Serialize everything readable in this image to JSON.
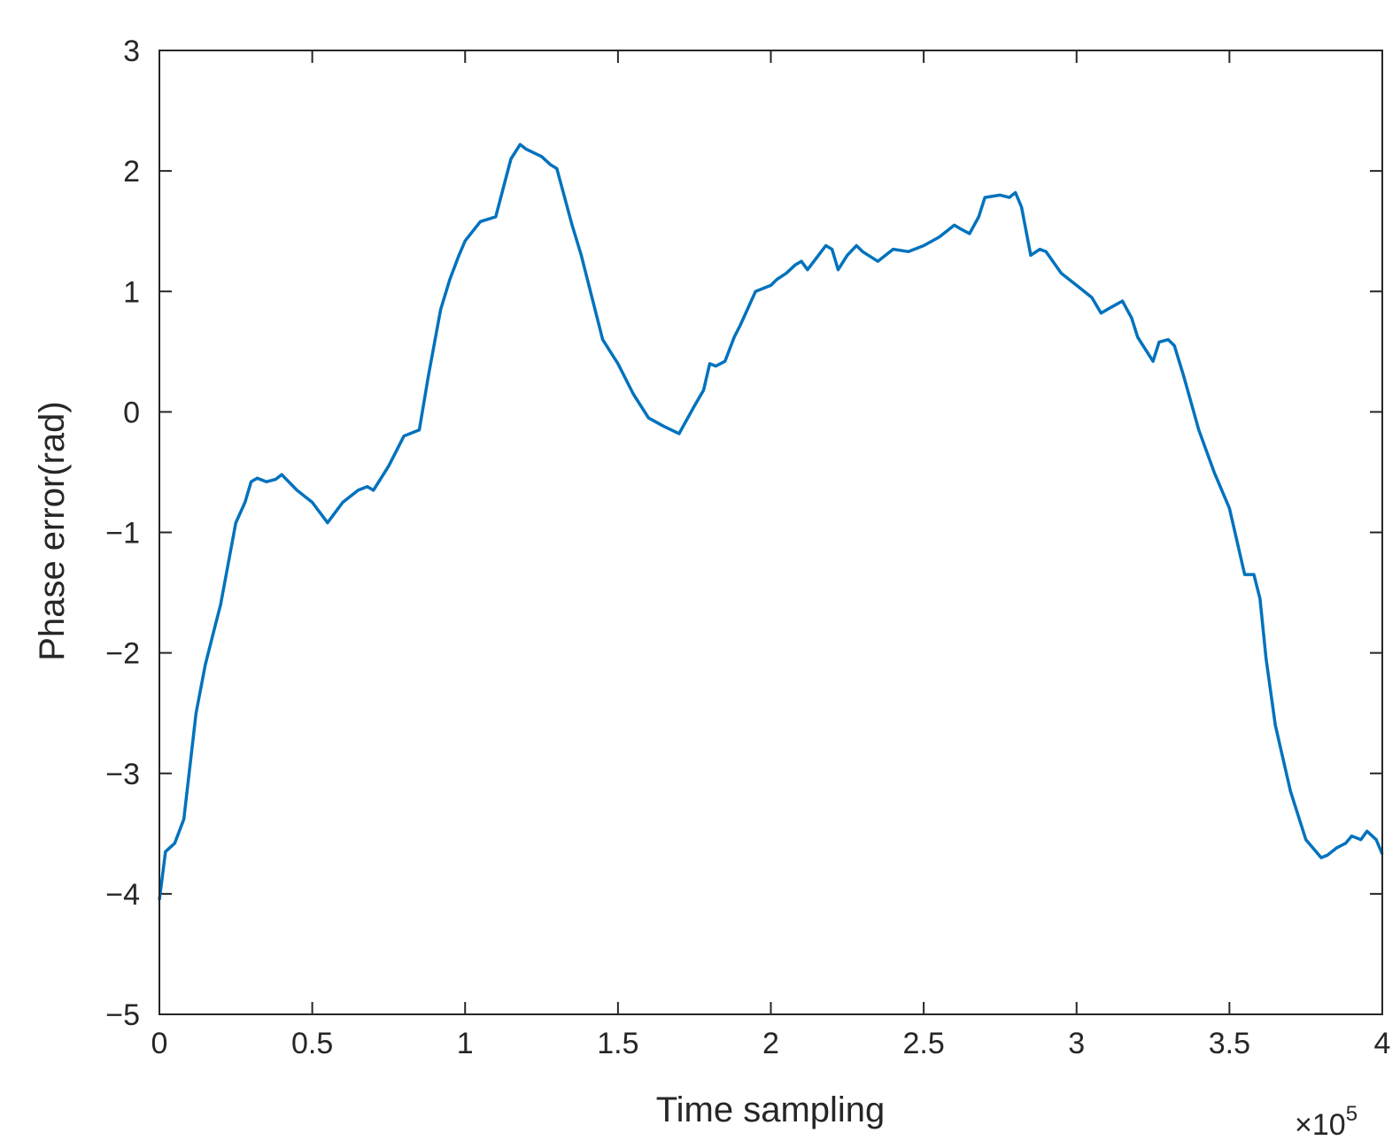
{
  "chart_data": {
    "type": "line",
    "xlabel": "Time sampling",
    "ylabel": "Phase error(rad)",
    "x_multiplier": "×10",
    "x_multiplier_exp": "5",
    "xlim": [
      0,
      4
    ],
    "ylim": [
      -5,
      3
    ],
    "xticks": [
      "0",
      "0.5",
      "1",
      "1.5",
      "2",
      "2.5",
      "3",
      "3.5",
      "4"
    ],
    "yticks": [
      "3",
      "2",
      "1",
      "0",
      "−1",
      "−2",
      "−3",
      "−4",
      "−5"
    ],
    "grid": false,
    "line_color": "#0072BD",
    "series": [
      {
        "x": [
          0,
          0.02,
          0.05,
          0.08,
          0.12,
          0.15,
          0.18,
          0.2,
          0.25,
          0.28,
          0.3,
          0.32,
          0.35,
          0.38,
          0.4,
          0.45,
          0.5,
          0.55,
          0.6,
          0.65,
          0.68,
          0.7,
          0.75,
          0.8,
          0.85,
          0.88,
          0.92,
          0.95,
          0.98,
          1.0,
          1.05,
          1.1,
          1.15,
          1.18,
          1.2,
          1.25,
          1.28,
          1.3,
          1.35,
          1.38,
          1.4,
          1.45,
          1.5,
          1.55,
          1.6,
          1.65,
          1.7,
          1.75,
          1.78,
          1.8,
          1.82,
          1.85,
          1.88,
          1.9,
          1.95,
          2.0,
          2.02,
          2.05,
          2.08,
          2.1,
          2.12,
          2.15,
          2.18,
          2.2,
          2.22,
          2.25,
          2.28,
          2.3,
          2.35,
          2.4,
          2.45,
          2.5,
          2.55,
          2.6,
          2.62,
          2.65,
          2.68,
          2.7,
          2.75,
          2.78,
          2.8,
          2.82,
          2.85,
          2.88,
          2.9,
          2.95,
          3.0,
          3.05,
          3.08,
          3.1,
          3.15,
          3.18,
          3.2,
          3.25,
          3.27,
          3.3,
          3.32,
          3.35,
          3.4,
          3.45,
          3.5,
          3.55,
          3.58,
          3.6,
          3.62,
          3.65,
          3.7,
          3.75,
          3.8,
          3.82,
          3.85,
          3.88,
          3.9,
          3.93,
          3.95,
          3.98,
          4.0
        ],
        "y": [
          -4.05,
          -3.65,
          -3.58,
          -3.38,
          -2.5,
          -2.1,
          -1.8,
          -1.6,
          -0.92,
          -0.75,
          -0.58,
          -0.55,
          -0.58,
          -0.56,
          -0.52,
          -0.65,
          -0.75,
          -0.92,
          -0.75,
          -0.65,
          -0.62,
          -0.65,
          -0.45,
          -0.2,
          -0.15,
          0.3,
          0.85,
          1.1,
          1.3,
          1.42,
          1.58,
          1.62,
          2.1,
          2.22,
          2.18,
          2.12,
          2.05,
          2.02,
          1.55,
          1.3,
          1.1,
          0.6,
          0.4,
          0.15,
          -0.05,
          -0.12,
          -0.18,
          0.05,
          0.18,
          0.4,
          0.38,
          0.42,
          0.62,
          0.72,
          1.0,
          1.05,
          1.1,
          1.15,
          1.22,
          1.25,
          1.18,
          1.28,
          1.38,
          1.35,
          1.18,
          1.3,
          1.38,
          1.33,
          1.25,
          1.35,
          1.33,
          1.38,
          1.45,
          1.55,
          1.52,
          1.48,
          1.62,
          1.78,
          1.8,
          1.78,
          1.82,
          1.7,
          1.3,
          1.35,
          1.33,
          1.15,
          1.05,
          0.95,
          0.82,
          0.85,
          0.92,
          0.78,
          0.62,
          0.42,
          0.58,
          0.6,
          0.55,
          0.3,
          -0.15,
          -0.5,
          -0.8,
          -1.35,
          -1.35,
          -1.55,
          -2.05,
          -2.6,
          -3.15,
          -3.55,
          -3.7,
          -3.68,
          -3.62,
          -3.58,
          -3.52,
          -3.55,
          -3.48,
          -3.55,
          -3.67
        ]
      }
    ]
  }
}
